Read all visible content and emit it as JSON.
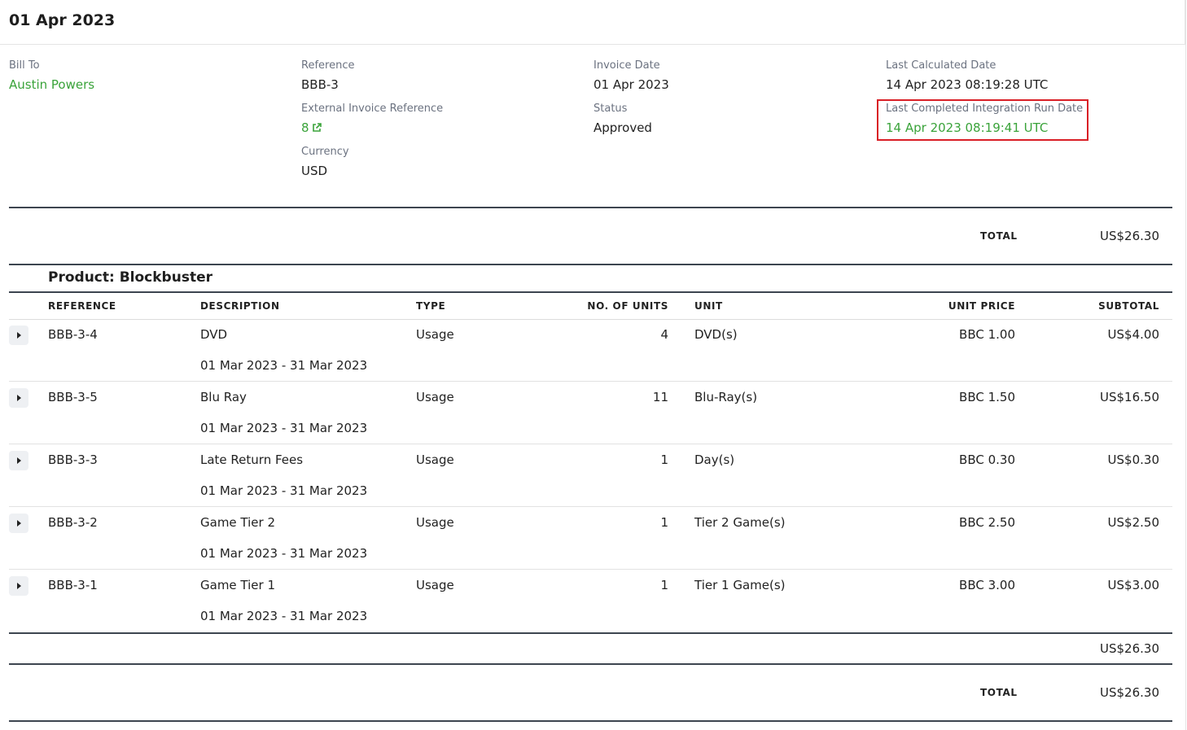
{
  "header": {
    "title": "01 Apr 2023"
  },
  "info": {
    "bill_to": {
      "label": "Bill To",
      "value": "Austin Powers"
    },
    "reference": {
      "label": "Reference",
      "value": "BBB-3"
    },
    "external_invoice_reference": {
      "label": "External Invoice Reference",
      "value": "8"
    },
    "currency": {
      "label": "Currency",
      "value": "USD"
    },
    "invoice_date": {
      "label": "Invoice Date",
      "value": "01 Apr 2023"
    },
    "status": {
      "label": "Status",
      "value": "Approved"
    },
    "last_calculated_date": {
      "label": "Last Calculated Date",
      "value": "14 Apr 2023 08:19:28 UTC"
    },
    "last_completed_integration_run_date": {
      "label": "Last Completed Integration Run Date",
      "value": "14 Apr 2023 08:19:41 UTC"
    }
  },
  "summary": {
    "total_label": "TOTAL",
    "total_value": "US$26.30"
  },
  "product": {
    "title": "Product: Blockbuster",
    "columns": {
      "reference": "REFERENCE",
      "description": "DESCRIPTION",
      "type": "TYPE",
      "units": "NO. OF UNITS",
      "unit": "UNIT",
      "unit_price": "UNIT PRICE",
      "subtotal": "SUBTOTAL"
    },
    "rows": [
      {
        "reference": "BBB-3-4",
        "description": "DVD",
        "period": "01 Mar 2023 - 31 Mar 2023",
        "type": "Usage",
        "units": "4",
        "unit": "DVD(s)",
        "unit_price": "BBC 1.00",
        "subtotal": "US$4.00"
      },
      {
        "reference": "BBB-3-5",
        "description": "Blu Ray",
        "period": "01 Mar 2023 - 31 Mar 2023",
        "type": "Usage",
        "units": "11",
        "unit": "Blu-Ray(s)",
        "unit_price": "BBC 1.50",
        "subtotal": "US$16.50"
      },
      {
        "reference": "BBB-3-3",
        "description": "Late Return Fees",
        "period": "01 Mar 2023 - 31 Mar 2023",
        "type": "Usage",
        "units": "1",
        "unit": "Day(s)",
        "unit_price": "BBC 0.30",
        "subtotal": "US$0.30"
      },
      {
        "reference": "BBB-3-2",
        "description": "Game Tier 2",
        "period": "01 Mar 2023 - 31 Mar 2023",
        "type": "Usage",
        "units": "1",
        "unit": "Tier 2 Game(s)",
        "unit_price": "BBC 2.50",
        "subtotal": "US$2.50"
      },
      {
        "reference": "BBB-3-1",
        "description": "Game Tier 1",
        "period": "01 Mar 2023 - 31 Mar 2023",
        "type": "Usage",
        "units": "1",
        "unit": "Tier 1 Game(s)",
        "unit_price": "BBC 3.00",
        "subtotal": "US$3.00"
      }
    ],
    "subtotal_value": "US$26.30"
  },
  "footer": {
    "total_label": "TOTAL",
    "total_value": "US$26.30"
  },
  "colors": {
    "link": "#3aa33a",
    "highlight_border": "#d91f26",
    "rule": "#3d4550"
  }
}
